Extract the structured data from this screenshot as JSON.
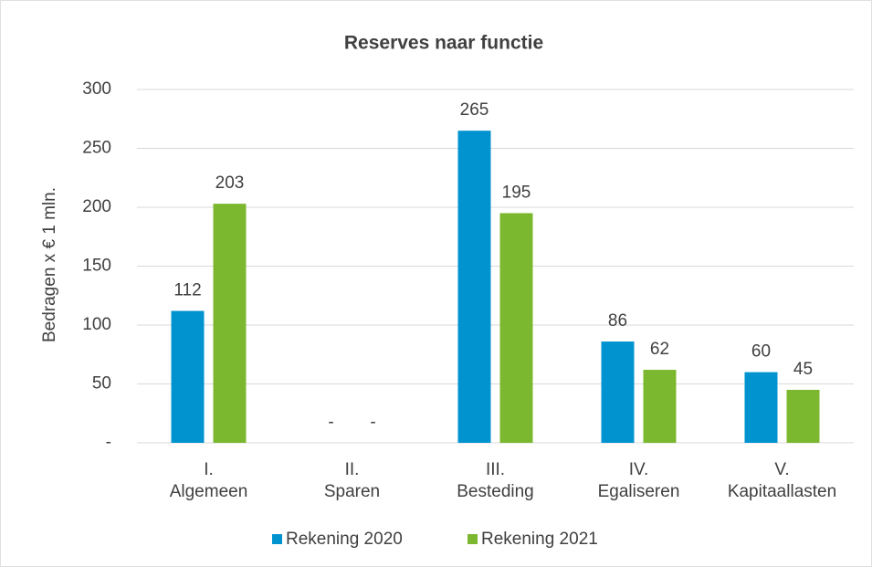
{
  "chart_data": {
    "type": "bar",
    "title": "Reserves naar functie",
    "y_label": "Bedragen x € 1 mln.",
    "categories": [
      [
        "I.",
        "Algemeen"
      ],
      [
        "II.",
        "Sparen"
      ],
      [
        "III.",
        "Besteding"
      ],
      [
        "IV.",
        "Egaliseren"
      ],
      [
        "V.",
        "Kapitaallasten"
      ]
    ],
    "series": [
      {
        "name": "Rekening 2020",
        "color": "#0093d0",
        "values": [
          112,
          0,
          265,
          86,
          60
        ],
        "value_labels": [
          "112",
          "-",
          "265",
          "86",
          "60"
        ]
      },
      {
        "name": "Rekening 2021",
        "color": "#7cb82f",
        "values": [
          203,
          0,
          195,
          62,
          45
        ],
        "value_labels": [
          "203",
          "-",
          "195",
          "62",
          "45"
        ]
      }
    ],
    "ylim": [
      0,
      300
    ],
    "yticks": [
      {
        "value": 0,
        "label": "-"
      },
      50,
      100,
      150,
      200,
      250,
      300
    ],
    "grid": true,
    "legend": "bottom"
  }
}
